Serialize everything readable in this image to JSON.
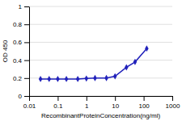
{
  "chart_data": {
    "type": "line",
    "xlabel": "RecombinantProteinConcentration(ng/ml)",
    "ylabel": "OD 450",
    "x": [
      0.025,
      0.05,
      0.1,
      0.2,
      0.5,
      1.0,
      2.0,
      5.0,
      10.0,
      25.0,
      50.0,
      128.0
    ],
    "values": [
      0.19,
      0.19,
      0.19,
      0.19,
      0.19,
      0.195,
      0.2,
      0.2,
      0.22,
      0.32,
      0.38,
      0.53
    ],
    "color": "#2222bb",
    "marker": "diamond",
    "log": "x",
    "xlim": [
      0.01,
      1000
    ],
    "ylim": [
      0,
      1.0
    ],
    "xticks": [
      0.01,
      0.1,
      1,
      10,
      100,
      1000
    ],
    "yticks": [
      0,
      0.2,
      0.4,
      0.6,
      0.8,
      1
    ],
    "grid": "y"
  }
}
